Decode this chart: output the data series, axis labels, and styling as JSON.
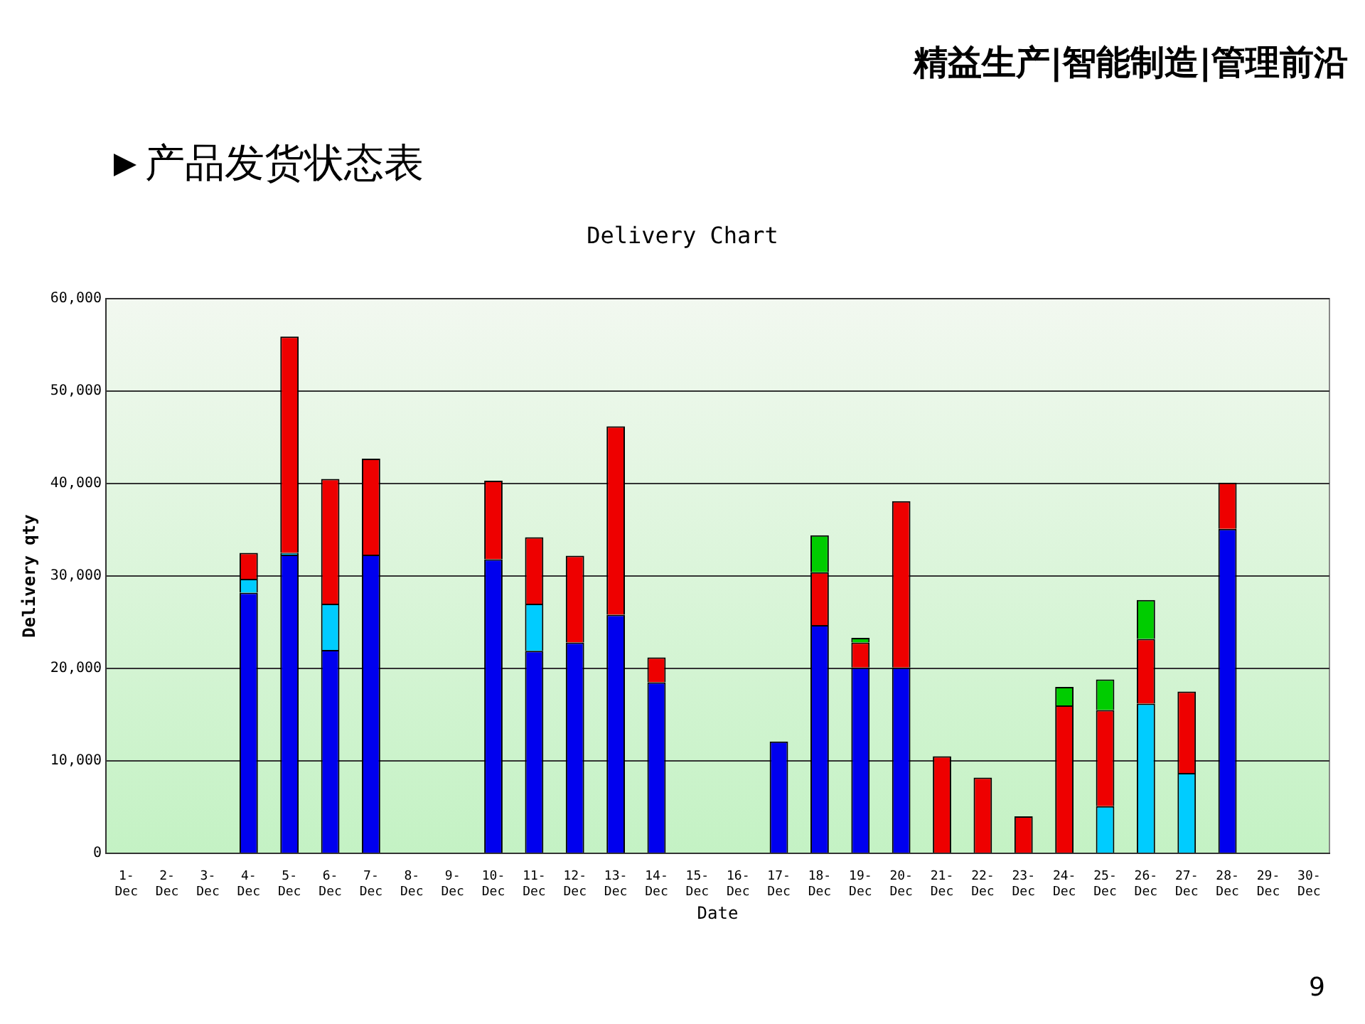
{
  "chart_data": {
    "type": "bar",
    "title": "产品发货状态表",
    "subtitle": "Delivery Chart",
    "xlabel": "Date",
    "ylabel": "Delivery qty",
    "annotations": [
      "精益生产|智能制造|管理前沿",
      "9"
    ],
    "categories": [
      "1-Dec",
      "2-Dec",
      "3-Dec",
      "4-Dec",
      "5-Dec",
      "6-Dec",
      "7-Dec",
      "8-Dec",
      "9-Dec",
      "10-Dec",
      "11-Dec",
      "12-Dec",
      "13-Dec",
      "14-Dec",
      "15-Dec",
      "16-Dec",
      "17-Dec",
      "18-Dec",
      "19-Dec",
      "20-Dec",
      "21-Dec",
      "22-Dec",
      "23-Dec",
      "24-Dec",
      "25-Dec",
      "26-Dec",
      "27-Dec",
      "28-Dec",
      "29-Dec",
      "30-Dec"
    ],
    "stacked": true,
    "series": [
      {
        "color": "#0000ee",
        "values": [
          null,
          null,
          null,
          28200,
          32300,
          22000,
          32300,
          null,
          null,
          31800,
          21900,
          22800,
          25800,
          18500,
          null,
          null,
          12100,
          24700,
          20100,
          20100,
          null,
          null,
          null,
          null,
          null,
          null,
          null,
          35100,
          null,
          null
        ]
      },
      {
        "color": "#00ccff",
        "values": [
          null,
          null,
          null,
          1500,
          200,
          5000,
          null,
          null,
          null,
          null,
          5100,
          null,
          null,
          null,
          null,
          null,
          null,
          null,
          null,
          null,
          null,
          null,
          null,
          null,
          5100,
          16200,
          8700,
          null,
          null,
          null
        ]
      },
      {
        "color": "#ee0000",
        "values": [
          null,
          null,
          null,
          2800,
          23400,
          13500,
          10400,
          null,
          null,
          8500,
          7200,
          9400,
          20400,
          2700,
          null,
          null,
          null,
          5700,
          2700,
          18000,
          10500,
          8200,
          4000,
          16000,
          10400,
          7000,
          8800,
          5000,
          null,
          null
        ]
      },
      {
        "color": "#00cc00",
        "values": [
          null,
          null,
          null,
          null,
          null,
          null,
          null,
          null,
          null,
          null,
          null,
          null,
          null,
          null,
          null,
          null,
          null,
          4000,
          500,
          null,
          null,
          null,
          null,
          2000,
          3300,
          4200,
          null,
          null,
          null,
          null
        ]
      }
    ],
    "ylim": [
      0,
      60000
    ],
    "yticks": [
      {
        "value": 0,
        "label": "0"
      },
      {
        "value": 10000,
        "label": "10,000"
      },
      {
        "value": 20000,
        "label": "20,000"
      },
      {
        "value": 30000,
        "label": "30,000"
      },
      {
        "value": 40000,
        "label": "40,000"
      },
      {
        "value": 50000,
        "label": "50,000"
      },
      {
        "value": 60000,
        "label": "60,000"
      }
    ],
    "grid": "y",
    "legend": false
  }
}
